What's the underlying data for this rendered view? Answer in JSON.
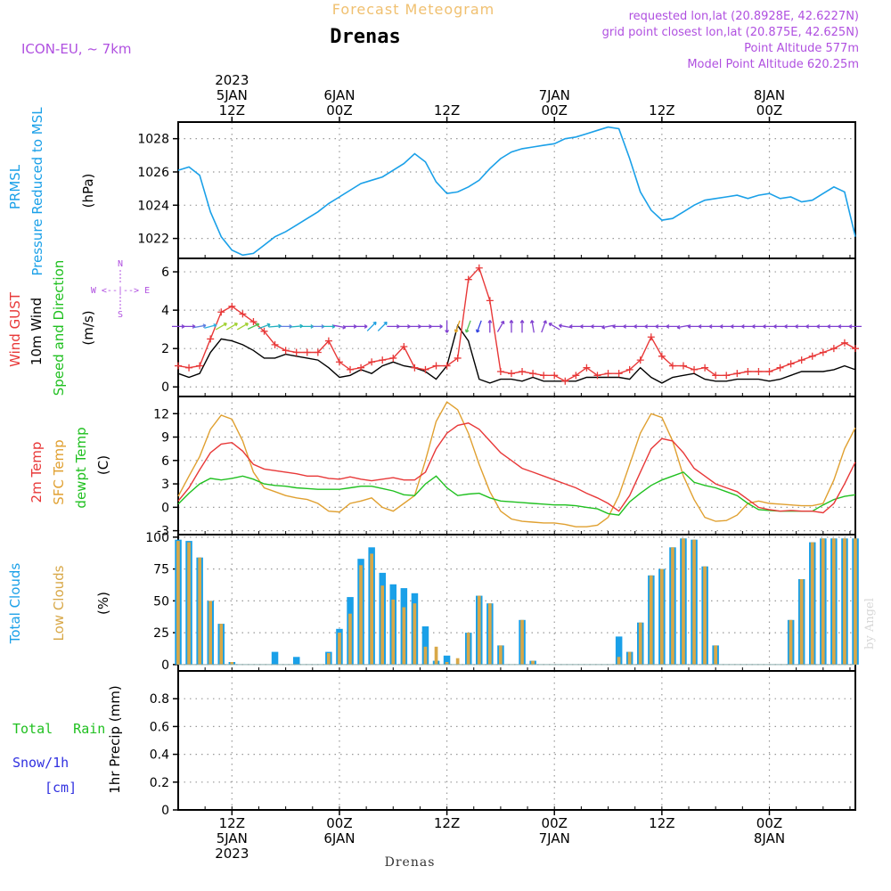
{
  "header": {
    "subtitle": "Forecast Meteogram",
    "location": "Drenas",
    "model": "ICON-EU, ~ 7km",
    "requested": "requested lon,lat (20.8928E, 42.6227N)",
    "grid_point": "grid point closest lon,lat (20.875E, 42.625N)",
    "point_alt": "Point Altitude 577m",
    "model_alt": "Model Point Altitude 620.25m",
    "footer": "Drenas",
    "watermark": "by Angel"
  },
  "colors": {
    "pressure": "#1aa0e8",
    "gust": "#e83838",
    "wind": "#000000",
    "temp2m": "#e83838",
    "sfc": "#e0a030",
    "dewpt": "#20c020",
    "total_cloud": "#1aa0e8",
    "low_cloud": "#d8a848",
    "rain": "#20c020",
    "snow": "#3030e0",
    "purple": "#b050e0",
    "orange": "#f0c070"
  },
  "time_axis": {
    "x_range": [
      0,
      63
    ],
    "major_ticks": [
      {
        "x": 5,
        "label": [
          "12Z",
          "5JAN",
          "2023"
        ]
      },
      {
        "x": 15,
        "label": [
          "00Z",
          "6JAN"
        ]
      },
      {
        "x": 25,
        "label": [
          "12Z"
        ]
      },
      {
        "x": 35,
        "label": [
          "00Z",
          "7JAN"
        ]
      },
      {
        "x": 45,
        "label": [
          "12Z"
        ]
      },
      {
        "x": 55,
        "label": [
          "00Z",
          "8JAN"
        ]
      }
    ],
    "top_labels": [
      {
        "x": 5,
        "label": [
          "2023",
          "5JAN",
          "12Z"
        ]
      },
      {
        "x": 15,
        "label": [
          "6JAN",
          "00Z"
        ]
      },
      {
        "x": 25,
        "label": [
          "12Z"
        ]
      },
      {
        "x": 35,
        "label": [
          "7JAN",
          "00Z"
        ]
      },
      {
        "x": 45,
        "label": [
          "12Z"
        ]
      },
      {
        "x": 55,
        "label": [
          "8JAN",
          "00Z"
        ]
      }
    ]
  },
  "chart_data": [
    {
      "id": "pressure",
      "type": "line",
      "ylabels": [
        "PRMSL",
        "Pressure Reduced to MSL"
      ],
      "unit": "(hPa)",
      "ylim": [
        1020.8,
        1029.0
      ],
      "yticks": [
        1022,
        1024,
        1026,
        1028
      ],
      "x": [
        0,
        1,
        2,
        3,
        4,
        5,
        6,
        7,
        8,
        9,
        10,
        11,
        12,
        13,
        14,
        15,
        16,
        17,
        18,
        19,
        20,
        21,
        22,
        23,
        24,
        25,
        26,
        27,
        28,
        29,
        30,
        31,
        32,
        33,
        34,
        35,
        36,
        37,
        38,
        39,
        40,
        41,
        42,
        43,
        44,
        45,
        46,
        47,
        48,
        49,
        50,
        51,
        52,
        53,
        54,
        55,
        56,
        57,
        58,
        59,
        60,
        61,
        62,
        63
      ],
      "series": [
        {
          "name": "PRMSL",
          "values": [
            1026.1,
            1026.3,
            1025.8,
            1023.6,
            1022.1,
            1021.3,
            1021.0,
            1021.1,
            1021.6,
            1022.1,
            1022.4,
            1022.8,
            1023.2,
            1023.6,
            1024.1,
            1024.5,
            1024.9,
            1025.3,
            1025.5,
            1025.7,
            1026.1,
            1026.5,
            1027.1,
            1026.6,
            1025.4,
            1024.7,
            1024.8,
            1025.1,
            1025.5,
            1026.2,
            1026.8,
            1027.2,
            1027.4,
            1027.5,
            1027.6,
            1027.7,
            1028.0,
            1028.1,
            1028.3,
            1028.5,
            1028.7,
            1028.6,
            1026.8,
            1024.8,
            1023.7,
            1023.1,
            1023.2,
            1023.6,
            1024.0,
            1024.3,
            1024.4,
            1024.5,
            1024.6,
            1024.4,
            1024.6,
            1024.7,
            1024.4,
            1024.5,
            1024.2,
            1024.3,
            1024.7,
            1025.1,
            1024.8,
            1022.1
          ]
        }
      ]
    },
    {
      "id": "wind",
      "type": "line",
      "ylabels": [
        "Wind GUST",
        "10m Wind",
        "Speed and Direction"
      ],
      "unit": "(m/s)",
      "ylim": [
        -0.5,
        6.7
      ],
      "yticks": [
        0,
        2,
        4,
        6
      ],
      "compass": [
        "N",
        "W <--|--> E",
        "S"
      ],
      "x": [
        0,
        1,
        2,
        3,
        4,
        5,
        6,
        7,
        8,
        9,
        10,
        11,
        12,
        13,
        14,
        15,
        16,
        17,
        18,
        19,
        20,
        21,
        22,
        23,
        24,
        25,
        26,
        27,
        28,
        29,
        30,
        31,
        32,
        33,
        34,
        35,
        36,
        37,
        38,
        39,
        40,
        41,
        42,
        43,
        44,
        45,
        46,
        47,
        48,
        49,
        50,
        51,
        52,
        53,
        54,
        55,
        56,
        57,
        58,
        59,
        60,
        61,
        62,
        63
      ],
      "series": [
        {
          "name": "Wind GUST",
          "values": [
            1.1,
            1.0,
            1.1,
            2.5,
            3.9,
            4.2,
            3.8,
            3.4,
            2.9,
            2.2,
            1.9,
            1.8,
            1.8,
            1.8,
            2.4,
            1.3,
            0.9,
            1.0,
            1.3,
            1.4,
            1.5,
            2.1,
            1.0,
            0.9,
            1.1,
            1.1,
            1.5,
            5.6,
            6.2,
            4.5,
            0.8,
            0.7,
            0.8,
            0.7,
            0.6,
            0.6,
            0.3,
            0.6,
            1.0,
            0.6,
            0.7,
            0.7,
            0.9,
            1.4,
            2.6,
            1.6,
            1.1,
            1.1,
            0.9,
            1.0,
            0.6,
            0.6,
            0.7,
            0.8,
            0.8,
            0.8,
            1.0,
            1.2,
            1.4,
            1.6,
            1.8,
            2.0,
            2.3,
            2.0
          ]
        },
        {
          "name": "10m Wind",
          "values": [
            0.7,
            0.5,
            0.7,
            1.8,
            2.5,
            2.4,
            2.2,
            1.9,
            1.5,
            1.5,
            1.7,
            1.6,
            1.5,
            1.4,
            1.0,
            0.5,
            0.6,
            0.9,
            0.7,
            1.1,
            1.3,
            1.1,
            1.0,
            0.8,
            0.4,
            1.1,
            3.2,
            2.4,
            0.4,
            0.2,
            0.4,
            0.4,
            0.3,
            0.5,
            0.3,
            0.3,
            0.3,
            0.3,
            0.5,
            0.5,
            0.5,
            0.5,
            0.4,
            1.0,
            0.5,
            0.2,
            0.5,
            0.6,
            0.7,
            0.4,
            0.3,
            0.3,
            0.4,
            0.4,
            0.4,
            0.3,
            0.4,
            0.6,
            0.8,
            0.8,
            0.8,
            0.9,
            1.1,
            0.9
          ]
        }
      ],
      "arrows": {
        "directions_deg": [
          90,
          90,
          80,
          75,
          60,
          60,
          60,
          65,
          70,
          85,
          90,
          85,
          90,
          90,
          90,
          100,
          90,
          90,
          45,
          45,
          90,
          90,
          90,
          90,
          90,
          180,
          200,
          200,
          200,
          0,
          30,
          0,
          0,
          350,
          20,
          300,
          280,
          270,
          270,
          270,
          260,
          270,
          270,
          270,
          270,
          270,
          270,
          260,
          270,
          270,
          270,
          270,
          270,
          270,
          270,
          270,
          270,
          270,
          270,
          270,
          270,
          270,
          270,
          270
        ],
        "colors": [
          "#8040d0",
          "#8040d0",
          "#6080e0",
          "#30b0e0",
          "#a0d030",
          "#a0d030",
          "#a0d030",
          "#50c050",
          "#20b0c0",
          "#20b0c0",
          "#6080e0",
          "#20b0c0",
          "#20b0c0",
          "#6080e0",
          "#20b0c0",
          "#8040d0",
          "#8040d0",
          "#8040d0",
          "#20a0e0",
          "#20a0e0",
          "#8040d0",
          "#8040d0",
          "#8040d0",
          "#8040d0",
          "#8040d0",
          "#8040d0",
          "#e0a020",
          "#50c050",
          "#3040e0",
          "#8040d0",
          "#8040d0",
          "#8040d0",
          "#8040d0",
          "#8040d0",
          "#8040d0",
          "#8040d0",
          "#8040d0",
          "#8040d0",
          "#8040d0",
          "#8040d0",
          "#8040d0",
          "#8040d0",
          "#8040d0",
          "#8040d0",
          "#8040d0",
          "#8040d0",
          "#8040d0",
          "#8040d0",
          "#8040d0",
          "#8040d0",
          "#8040d0",
          "#8040d0",
          "#8040d0",
          "#8040d0",
          "#8040d0",
          "#8040d0",
          "#8040d0",
          "#8040d0",
          "#8040d0",
          "#8040d0",
          "#8040d0",
          "#8040d0",
          "#8040d0",
          "#8040d0"
        ]
      }
    },
    {
      "id": "temperature",
      "type": "line",
      "ylabels": [
        "2m Temp",
        "SFC Temp",
        "dewpt Temp"
      ],
      "unit": "(C)",
      "ylim": [
        -3.5,
        14.2
      ],
      "yticks": [
        -3,
        0,
        3,
        6,
        9,
        12
      ],
      "x": [
        0,
        1,
        2,
        3,
        4,
        5,
        6,
        7,
        8,
        9,
        10,
        11,
        12,
        13,
        14,
        15,
        16,
        17,
        18,
        19,
        20,
        21,
        22,
        23,
        24,
        25,
        26,
        27,
        28,
        29,
        30,
        31,
        32,
        33,
        34,
        35,
        36,
        37,
        38,
        39,
        40,
        41,
        42,
        43,
        44,
        45,
        46,
        47,
        48,
        49,
        50,
        51,
        52,
        53,
        54,
        55,
        56,
        57,
        58,
        59,
        60,
        61,
        62,
        63
      ],
      "series": [
        {
          "name": "2m Temp",
          "values": [
            0.8,
            2.5,
            4.8,
            7.0,
            8.1,
            8.3,
            7.2,
            5.5,
            4.9,
            4.7,
            4.5,
            4.3,
            4.0,
            4.0,
            3.7,
            3.6,
            3.9,
            3.6,
            3.4,
            3.6,
            3.8,
            3.5,
            3.5,
            4.5,
            7.5,
            9.5,
            10.5,
            10.8,
            10.0,
            8.5,
            7.0,
            6.0,
            5.0,
            4.5,
            4.0,
            3.5,
            3.0,
            2.5,
            1.8,
            1.2,
            0.5,
            -0.5,
            1.5,
            4.5,
            7.5,
            8.8,
            8.5,
            7.0,
            5.0,
            4.0,
            3.0,
            2.5,
            2.0,
            1.0,
            0.0,
            -0.3,
            -0.5,
            -0.4,
            -0.5,
            -0.5,
            -0.7,
            0.5,
            3.0,
            5.8
          ]
        },
        {
          "name": "SFC Temp",
          "values": [
            1.4,
            4.0,
            6.5,
            10.0,
            11.8,
            11.3,
            8.5,
            4.5,
            2.5,
            2.0,
            1.5,
            1.2,
            1.0,
            0.5,
            -0.5,
            -0.6,
            0.5,
            0.8,
            1.2,
            0.0,
            -0.5,
            0.5,
            1.5,
            6.0,
            11.0,
            13.5,
            12.5,
            9.5,
            5.5,
            2.0,
            -0.5,
            -1.5,
            -1.8,
            -1.9,
            -2.0,
            -2.0,
            -2.2,
            -2.5,
            -2.5,
            -2.3,
            -1.3,
            1.5,
            5.5,
            9.5,
            12.0,
            11.5,
            8.5,
            4.0,
            1.0,
            -1.3,
            -1.8,
            -1.7,
            -1.0,
            0.5,
            0.8,
            0.5,
            0.4,
            0.3,
            0.2,
            0.2,
            0.5,
            3.5,
            7.5,
            10.2
          ]
        },
        {
          "name": "dewpt Temp",
          "values": [
            0.4,
            1.8,
            3.0,
            3.7,
            3.5,
            3.7,
            4.0,
            3.6,
            3.0,
            2.8,
            2.7,
            2.5,
            2.4,
            2.3,
            2.3,
            2.3,
            2.5,
            2.7,
            2.7,
            2.4,
            2.1,
            1.6,
            1.5,
            3.0,
            4.0,
            2.5,
            1.5,
            1.7,
            1.8,
            1.2,
            0.8,
            0.7,
            0.6,
            0.5,
            0.4,
            0.3,
            0.3,
            0.2,
            0.0,
            -0.2,
            -0.8,
            -1.0,
            0.7,
            1.8,
            2.8,
            3.5,
            4.0,
            4.5,
            3.2,
            2.8,
            2.5,
            2.0,
            1.5,
            0.5,
            -0.3,
            -0.4,
            -0.5,
            -0.5,
            -0.5,
            -0.5,
            0.3,
            1.0,
            1.4,
            1.6
          ]
        }
      ]
    },
    {
      "id": "clouds",
      "type": "bar",
      "ylabels": [
        "Total Clouds",
        "Low Clouds"
      ],
      "unit": "(%)",
      "ylim": [
        -5,
        102
      ],
      "yticks": [
        0,
        25,
        50,
        75,
        100
      ],
      "x": [
        0,
        1,
        2,
        3,
        4,
        5,
        6,
        7,
        8,
        9,
        10,
        11,
        12,
        13,
        14,
        15,
        16,
        17,
        18,
        19,
        20,
        21,
        22,
        23,
        24,
        25,
        26,
        27,
        28,
        29,
        30,
        31,
        32,
        33,
        34,
        35,
        36,
        37,
        38,
        39,
        40,
        41,
        42,
        43,
        44,
        45,
        46,
        47,
        48,
        49,
        50,
        51,
        52,
        53,
        54,
        55,
        56,
        57,
        58,
        59,
        60,
        61,
        62,
        63
      ],
      "series": [
        {
          "name": "Total Clouds",
          "values": [
            98,
            97,
            84,
            50,
            32,
            2,
            0,
            0,
            0,
            10,
            0,
            6,
            0,
            0,
            10,
            28,
            53,
            83,
            92,
            72,
            63,
            60,
            56,
            30,
            3,
            7,
            0,
            25,
            54,
            48,
            15,
            0,
            35,
            3,
            0,
            0,
            0,
            0,
            0,
            0,
            0,
            22,
            10,
            33,
            70,
            75,
            92,
            99,
            98,
            77,
            15,
            0,
            0,
            0,
            0,
            0,
            0,
            35,
            67,
            96,
            99,
            99,
            99,
            99
          ]
        },
        {
          "name": "Low Clouds",
          "values": [
            97,
            96,
            84,
            50,
            32,
            2,
            0,
            0,
            0,
            0,
            0,
            0,
            0,
            0,
            9,
            25,
            40,
            78,
            87,
            62,
            51,
            45,
            48,
            14,
            14,
            2,
            5,
            25,
            54,
            48,
            15,
            0,
            35,
            3,
            0,
            0,
            0,
            0,
            0,
            0,
            0,
            6,
            10,
            33,
            70,
            75,
            92,
            99,
            98,
            77,
            15,
            0,
            0,
            0,
            0,
            0,
            0,
            35,
            67,
            96,
            99,
            99,
            99,
            99
          ]
        }
      ]
    },
    {
      "id": "precip",
      "type": "bar",
      "ylabels": [
        "Total Rain",
        "Snow/1h",
        "[cm]"
      ],
      "unit": "1hr Precip (mm)",
      "ylim": [
        0,
        1.0
      ],
      "yticks": [
        0,
        0.2,
        0.4,
        0.6,
        0.8
      ],
      "ytick_labels": [
        "0",
        "0.2",
        "0.4",
        "0.6",
        "0.8"
      ],
      "series": [
        {
          "name": "Total Rain",
          "values": []
        }
      ]
    }
  ]
}
